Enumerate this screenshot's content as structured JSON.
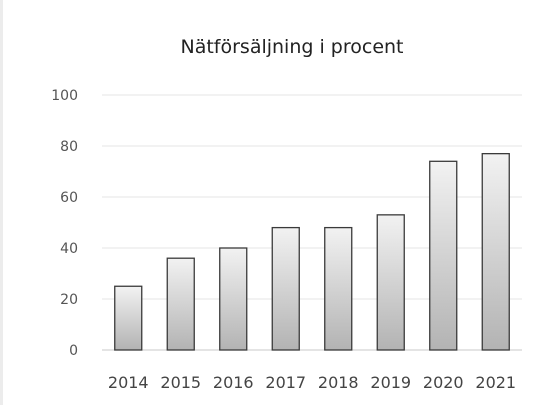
{
  "chart_data": {
    "type": "bar",
    "title": "Nätförsäljning i procent",
    "xlabel": "",
    "ylabel": "",
    "categories": [
      "2014",
      "2015",
      "2016",
      "2017",
      "2018",
      "2019",
      "2020",
      "2021"
    ],
    "values": [
      25,
      36,
      40,
      48,
      48,
      53,
      74,
      77
    ],
    "ylim": [
      0,
      100
    ],
    "yticks": [
      "0",
      "20",
      "40",
      "60",
      "80",
      "100"
    ],
    "grid": true,
    "legend": "none",
    "colors": {
      "bar_fill_top": "#f2f2f2",
      "bar_fill_bottom": "#b3b3b3",
      "bar_stroke": "#3a3a3a",
      "gridline": "#e4e4e4",
      "axis": "#c8c8c8"
    }
  }
}
